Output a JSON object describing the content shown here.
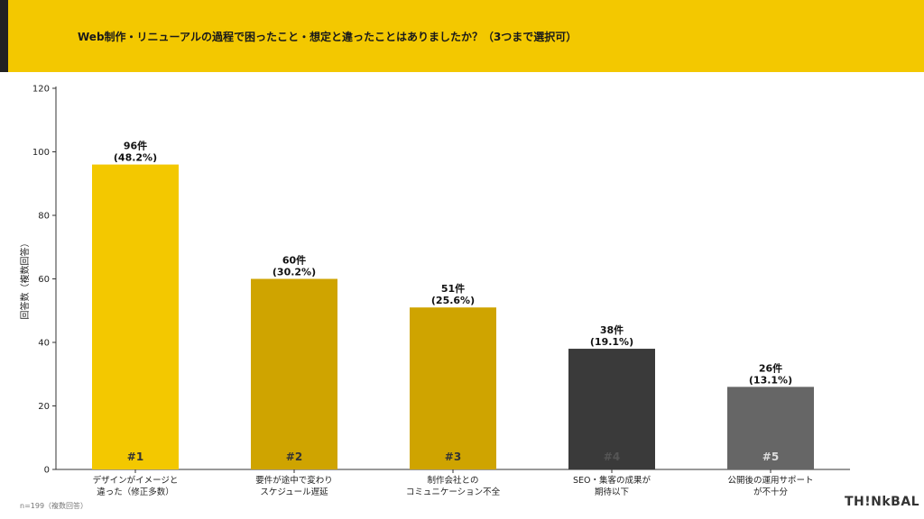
{
  "header": {
    "title": "Web制作・リニューアルの過程で困ったこと・想定と違ったことはありましたか？（3つまで選択可）"
  },
  "chart_data": {
    "type": "bar",
    "ylabel": "回答数（複数回答）",
    "xlabel": "",
    "ylim": [
      0,
      120
    ],
    "yticks": [
      0,
      20,
      40,
      60,
      80,
      100,
      120
    ],
    "grid": false,
    "categories": [
      [
        "デザインがイメージと",
        "違った（修正多数）"
      ],
      [
        "要件が途中で変わり",
        "スケジュール遅延"
      ],
      [
        "制作会社との",
        "コミュニケーション不全"
      ],
      [
        "SEO・集客の成果が",
        "期待以下"
      ],
      [
        "公開後の運用サポート",
        "が不十分"
      ]
    ],
    "values": [
      96,
      60,
      51,
      38,
      26
    ],
    "value_labels": [
      "96件",
      "60件",
      "51件",
      "38件",
      "26件"
    ],
    "percent_labels": [
      "(48.2%)",
      "(30.2%)",
      "(25.6%)",
      "(19.1%)",
      "(13.1%)"
    ],
    "rank_labels": [
      "#1",
      "#2",
      "#3",
      "#4",
      "#5"
    ],
    "colors": [
      "#f3c800",
      "#cfa400",
      "#cfa400",
      "#3a3a3a",
      "#666666"
    ],
    "rank_colors": [
      "#333333",
      "#333333",
      "#333333",
      "#555555",
      "#dddddd"
    ]
  },
  "footer": {
    "note": "n=199（複数回答）",
    "logo": "TH!NkBAL"
  }
}
